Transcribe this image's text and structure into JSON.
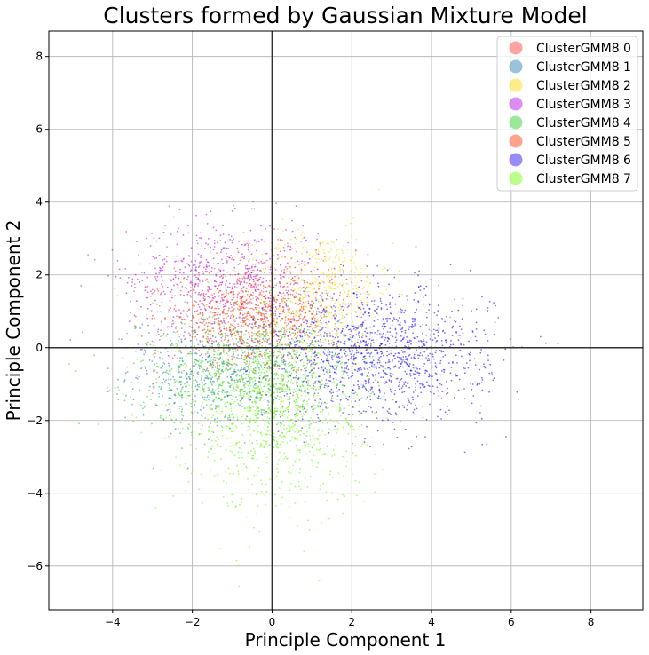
{
  "chart_data": {
    "type": "scatter",
    "title": "Clusters formed by Gaussian Mixture Model",
    "xlabel": "Principle Component 1",
    "ylabel": "Principle Component 2",
    "xlim": [
      -5.6,
      9.3
    ],
    "ylim": [
      -7.2,
      8.7
    ],
    "xticks": [
      -4,
      -2,
      0,
      2,
      4,
      6,
      8
    ],
    "yticks": [
      -6,
      -4,
      -2,
      0,
      2,
      4,
      6,
      8
    ],
    "xtick_labels": [
      "−4",
      "−2",
      "0",
      "2",
      "4",
      "6",
      "8"
    ],
    "ytick_labels": [
      "−6",
      "−4",
      "−2",
      "0",
      "2",
      "4",
      "6",
      "8"
    ],
    "grid": true,
    "reference_lines": {
      "x": 0,
      "y": 0
    },
    "legend": {
      "placement": "top-right"
    },
    "series": [
      {
        "name": "ClusterGMM8 0",
        "color": "#ff3333",
        "center": [
          -0.5,
          1.3
        ],
        "spread": [
          1.6,
          1.1
        ],
        "count": 220
      },
      {
        "name": "ClusterGMM8 1",
        "color": "#1f77b4",
        "center": [
          -1.6,
          -0.6
        ],
        "spread": [
          1.0,
          0.7
        ],
        "count": 420
      },
      {
        "name": "ClusterGMM8 2",
        "color": "#ffd700",
        "center": [
          1.2,
          1.6
        ],
        "spread": [
          0.9,
          0.8
        ],
        "count": 480
      },
      {
        "name": "ClusterGMM8 3",
        "color": "#b300e6",
        "center": [
          -1.2,
          1.9
        ],
        "spread": [
          1.2,
          0.8
        ],
        "count": 650
      },
      {
        "name": "ClusterGMM8 4",
        "color": "#22cc22",
        "center": [
          -0.6,
          -0.8
        ],
        "spread": [
          1.4,
          0.75
        ],
        "count": 900
      },
      {
        "name": "ClusterGMM8 5",
        "color": "#ff3300",
        "center": [
          -0.5,
          0.8
        ],
        "spread": [
          1.0,
          0.6
        ],
        "count": 800
      },
      {
        "name": "ClusterGMM8 6",
        "color": "#1a00ff",
        "center": [
          2.6,
          -0.2
        ],
        "spread": [
          1.4,
          0.9
        ],
        "count": 1300
      },
      {
        "name": "ClusterGMM8 7",
        "color": "#66ff00",
        "center": [
          0.0,
          -1.6
        ],
        "spread": [
          1.2,
          1.4
        ],
        "count": 1100
      }
    ]
  }
}
